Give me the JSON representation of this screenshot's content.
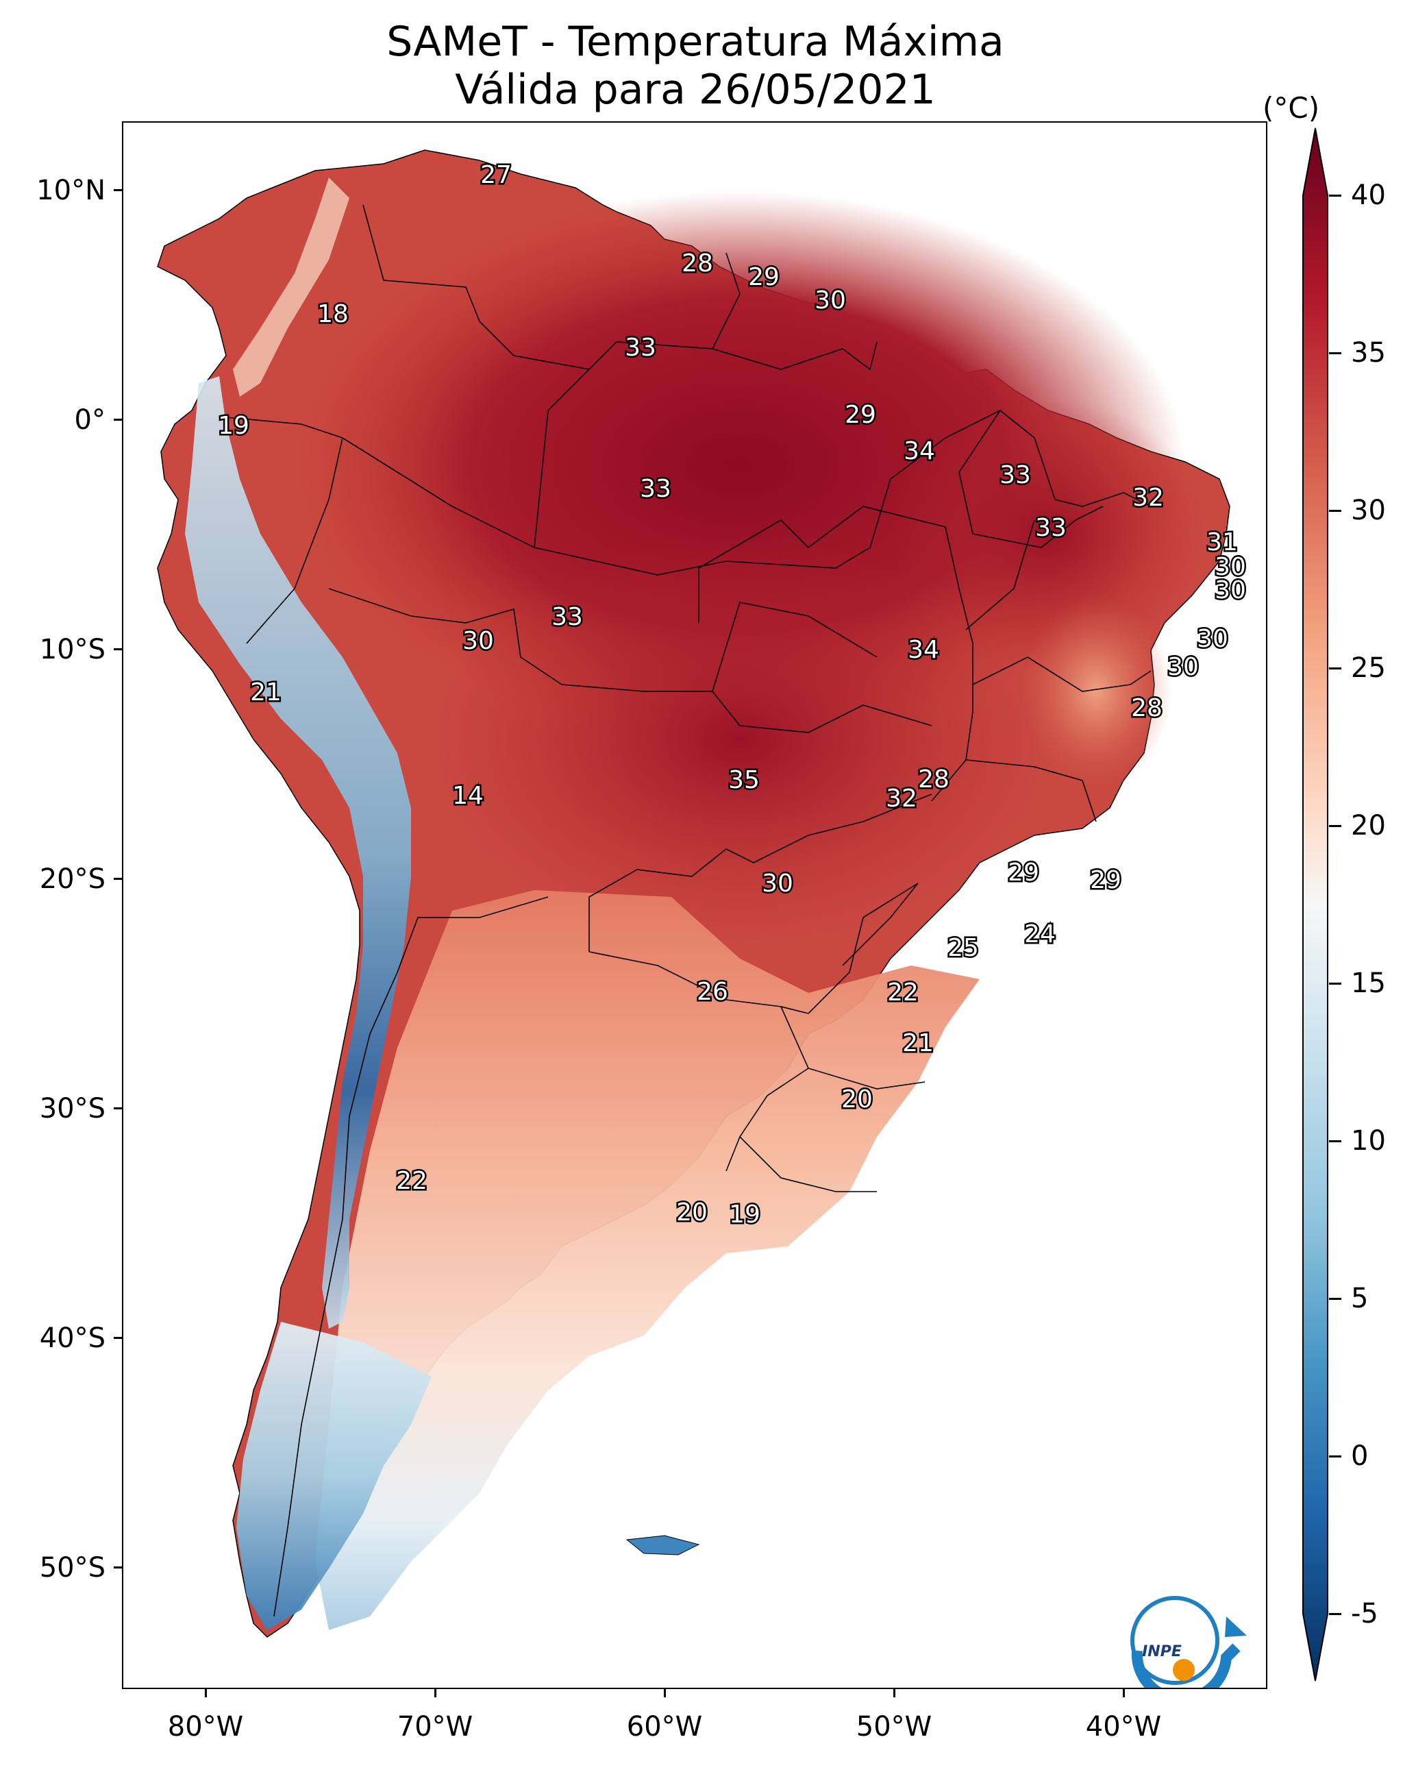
{
  "title": {
    "line1": "SAMeT - Temperatura Máxima",
    "line2": "Válida para 26/05/2021"
  },
  "axes": {
    "lat_labels": [
      "10°N",
      "0°",
      "10°S",
      "20°S",
      "30°S",
      "40°S",
      "50°S"
    ],
    "lon_labels": [
      "80°W",
      "70°W",
      "60°W",
      "50°W",
      "40°W"
    ]
  },
  "colorbar": {
    "unit": "(°C)",
    "ticks": [
      "40",
      "35",
      "30",
      "25",
      "20",
      "15",
      "10",
      "5",
      "0",
      "-5"
    ],
    "min": -5,
    "max": 40,
    "colors": {
      "c40": "#67001f",
      "c35": "#b2182b",
      "c30": "#d6604d",
      "c25": "#f4a582",
      "c20": "#fddbc7",
      "c17": "#f7f7f7",
      "c12": "#d1e5f0",
      "c8": "#92c5de",
      "c3": "#4393c3",
      "c0": "#2166ac",
      "cm5": "#053061"
    }
  },
  "station_labels": [
    {
      "id": "s1",
      "value": "27"
    },
    {
      "id": "s2",
      "value": "28"
    },
    {
      "id": "s3",
      "value": "29"
    },
    {
      "id": "s4",
      "value": "30"
    },
    {
      "id": "s5",
      "value": "18"
    },
    {
      "id": "s6",
      "value": "33"
    },
    {
      "id": "s7",
      "value": "19"
    },
    {
      "id": "s8",
      "value": "29"
    },
    {
      "id": "s9",
      "value": "34"
    },
    {
      "id": "s10",
      "value": "33"
    },
    {
      "id": "s11",
      "value": "33"
    },
    {
      "id": "s12",
      "value": "32"
    },
    {
      "id": "s13",
      "value": "33"
    },
    {
      "id": "s14",
      "value": "31"
    },
    {
      "id": "s15",
      "value": "30"
    },
    {
      "id": "s16",
      "value": "30"
    },
    {
      "id": "s17",
      "value": "33"
    },
    {
      "id": "s18",
      "value": "30"
    },
    {
      "id": "s19",
      "value": "34"
    },
    {
      "id": "s20",
      "value": "30"
    },
    {
      "id": "s21",
      "value": "30"
    },
    {
      "id": "s22",
      "value": "21"
    },
    {
      "id": "s23",
      "value": "28"
    },
    {
      "id": "s24",
      "value": "14"
    },
    {
      "id": "s25",
      "value": "35"
    },
    {
      "id": "s26",
      "value": "28"
    },
    {
      "id": "s27",
      "value": "32"
    },
    {
      "id": "s28",
      "value": "29"
    },
    {
      "id": "s29",
      "value": "29"
    },
    {
      "id": "s30",
      "value": "30"
    },
    {
      "id": "s31",
      "value": "24"
    },
    {
      "id": "s32",
      "value": "25"
    },
    {
      "id": "s33",
      "value": "26"
    },
    {
      "id": "s34",
      "value": "22"
    },
    {
      "id": "s35",
      "value": "21"
    },
    {
      "id": "s36",
      "value": "20"
    },
    {
      "id": "s37",
      "value": "22"
    },
    {
      "id": "s38",
      "value": "20"
    },
    {
      "id": "s39",
      "value": "19"
    }
  ],
  "logo": {
    "text": "INPE"
  }
}
